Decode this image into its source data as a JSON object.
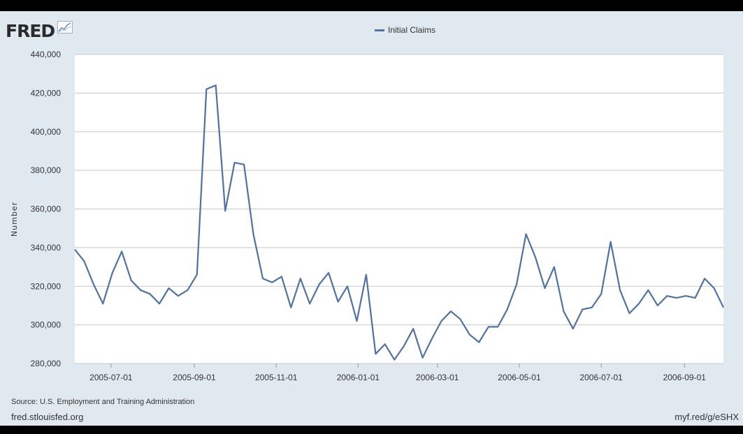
{
  "header": {
    "logo_text": "FRED",
    "logo_icon": "chart-line-icon"
  },
  "footer": {
    "source": "Source: U.S. Employment and Training Administration",
    "site": "fred.stlouisfed.org",
    "shortlink": "myf.red/g/eSHX"
  },
  "colors": {
    "background": "#e1e9f0",
    "plot_background": "#ffffff",
    "series": "#4f72a4",
    "grid": "#c8c8c8"
  },
  "chart_data": {
    "type": "line",
    "title": "",
    "xlabel": "",
    "ylabel": "Number",
    "ylim": [
      280000,
      440000
    ],
    "yticks": [
      280000,
      300000,
      320000,
      340000,
      360000,
      380000,
      400000,
      420000,
      440000
    ],
    "ytick_labels": [
      "280,000",
      "300,000",
      "320,000",
      "340,000",
      "360,000",
      "380,000",
      "400,000",
      "420,000",
      "440,000"
    ],
    "xlim": [
      "2005-06-04",
      "2006-09-30"
    ],
    "xticks": [
      "2005-07-01",
      "2005-09-01",
      "2005-11-01",
      "2006-01-01",
      "2006-03-01",
      "2006-05-01",
      "2006-07-01",
      "2006-09-01"
    ],
    "grid": true,
    "legend": "top-center",
    "series": [
      {
        "name": "Initial Claims",
        "x": [
          "2005-06-04",
          "2005-06-11",
          "2005-06-18",
          "2005-06-25",
          "2005-07-02",
          "2005-07-09",
          "2005-07-16",
          "2005-07-23",
          "2005-07-30",
          "2005-08-06",
          "2005-08-13",
          "2005-08-20",
          "2005-08-27",
          "2005-09-03",
          "2005-09-10",
          "2005-09-17",
          "2005-09-24",
          "2005-10-01",
          "2005-10-08",
          "2005-10-15",
          "2005-10-22",
          "2005-10-29",
          "2005-11-05",
          "2005-11-12",
          "2005-11-19",
          "2005-11-26",
          "2005-12-03",
          "2005-12-10",
          "2005-12-17",
          "2005-12-24",
          "2005-12-31",
          "2006-01-07",
          "2006-01-14",
          "2006-01-21",
          "2006-01-28",
          "2006-02-04",
          "2006-02-11",
          "2006-02-18",
          "2006-02-25",
          "2006-03-04",
          "2006-03-11",
          "2006-03-18",
          "2006-03-25",
          "2006-04-01",
          "2006-04-08",
          "2006-04-15",
          "2006-04-22",
          "2006-04-29",
          "2006-05-06",
          "2006-05-13",
          "2006-05-20",
          "2006-05-27",
          "2006-06-03",
          "2006-06-10",
          "2006-06-17",
          "2006-06-24",
          "2006-07-01",
          "2006-07-08",
          "2006-07-15",
          "2006-07-22",
          "2006-07-29",
          "2006-08-05",
          "2006-08-12",
          "2006-08-19",
          "2006-08-26",
          "2006-09-02",
          "2006-09-09",
          "2006-09-16",
          "2006-09-23",
          "2006-09-30"
        ],
        "y": [
          339000,
          333000,
          321000,
          311000,
          327000,
          338000,
          323000,
          318000,
          316000,
          311000,
          319000,
          315000,
          318000,
          326000,
          422000,
          424000,
          359000,
          384000,
          383000,
          347000,
          324000,
          322000,
          325000,
          309000,
          324000,
          311000,
          321000,
          327000,
          312000,
          320000,
          302000,
          326000,
          285000,
          290000,
          282000,
          289000,
          298000,
          283000,
          293000,
          302000,
          307000,
          303000,
          295000,
          291000,
          299000,
          299000,
          308000,
          321000,
          347000,
          335000,
          319000,
          330000,
          307000,
          298000,
          308000,
          309000,
          316000,
          343000,
          318000,
          306000,
          311000,
          318000,
          310000,
          315000,
          314000,
          315000,
          314000,
          324000,
          319000,
          309000
        ]
      }
    ]
  }
}
